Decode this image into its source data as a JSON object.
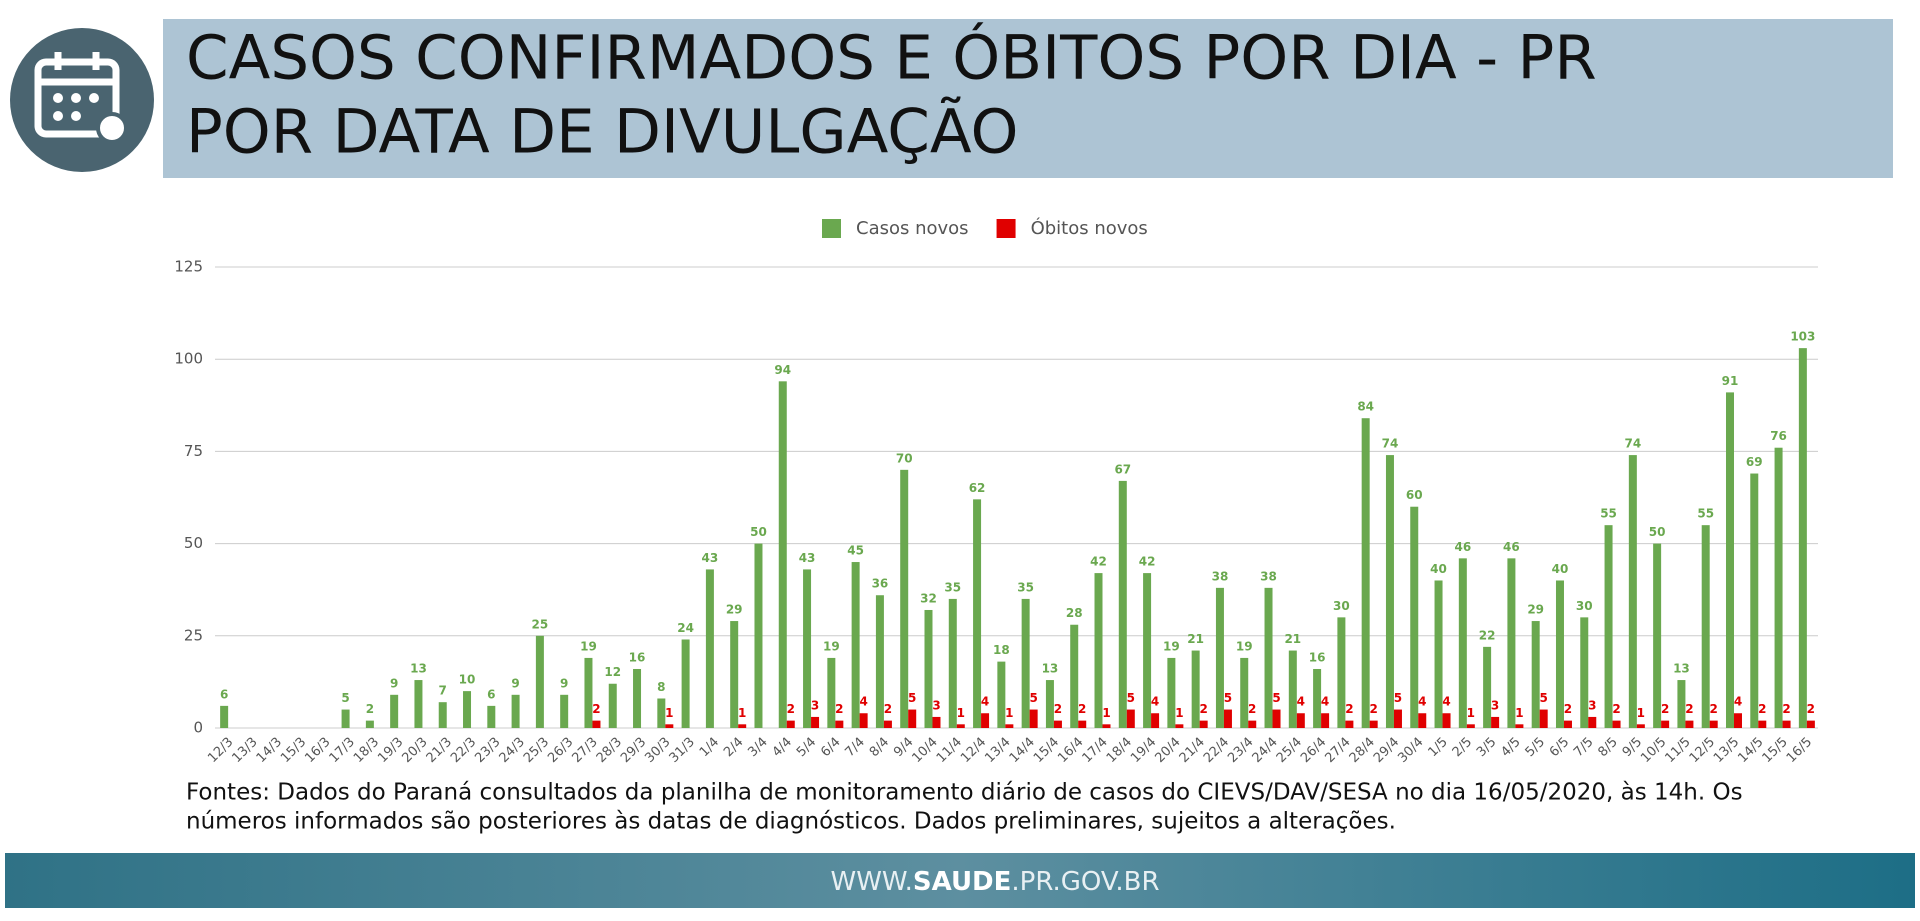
{
  "header": {
    "title": [
      "CASOS CONFIRMADOS E ÓBITOS POR DIA - PR",
      "POR DATA DE DIVULGAÇÃO"
    ]
  },
  "chart_data": {
    "type": "bar",
    "categories": [
      "12/3",
      "13/3",
      "14/3",
      "15/3",
      "16/3",
      "17/3",
      "18/3",
      "19/3",
      "20/3",
      "21/3",
      "22/3",
      "23/3",
      "24/3",
      "25/3",
      "26/3",
      "27/3",
      "28/3",
      "29/3",
      "30/3",
      "31/3",
      "1/4",
      "2/4",
      "3/4",
      "4/4",
      "5/4",
      "6/4",
      "7/4",
      "8/4",
      "9/4",
      "10/4",
      "11/4",
      "12/4",
      "13/4",
      "14/4",
      "15/4",
      "16/4",
      "17/4",
      "18/4",
      "19/4",
      "20/4",
      "21/4",
      "22/4",
      "23/4",
      "24/4",
      "25/4",
      "26/4",
      "27/4",
      "28/4",
      "29/4",
      "30/4",
      "1/5",
      "2/5",
      "3/5",
      "4/5",
      "5/5",
      "6/5",
      "7/5",
      "8/5",
      "9/5",
      "10/5",
      "11/5",
      "12/5",
      "13/5",
      "14/5",
      "15/5",
      "16/5"
    ],
    "series": [
      {
        "name": "Casos novos",
        "color": "#6aa84f",
        "values": [
          6,
          null,
          null,
          null,
          null,
          5,
          2,
          9,
          13,
          7,
          10,
          6,
          9,
          25,
          9,
          19,
          12,
          16,
          8,
          24,
          43,
          29,
          50,
          94,
          43,
          19,
          45,
          36,
          70,
          32,
          35,
          62,
          18,
          35,
          13,
          28,
          42,
          67,
          42,
          19,
          21,
          38,
          19,
          38,
          21,
          16,
          30,
          84,
          74,
          60,
          40,
          46,
          22,
          46,
          29,
          40,
          30,
          55,
          74,
          50,
          13,
          55,
          91,
          69,
          76,
          103
        ]
      },
      {
        "name": "Óbitos novos",
        "color": "#e00000",
        "values": [
          null,
          null,
          null,
          null,
          null,
          null,
          null,
          null,
          null,
          null,
          null,
          null,
          null,
          null,
          null,
          2,
          null,
          null,
          1,
          null,
          null,
          1,
          null,
          2,
          3,
          2,
          4,
          2,
          5,
          3,
          1,
          4,
          1,
          5,
          2,
          2,
          1,
          5,
          4,
          1,
          2,
          5,
          2,
          5,
          4,
          4,
          2,
          2,
          5,
          4,
          4,
          1,
          3,
          1,
          5,
          2,
          3,
          2,
          1,
          2,
          2,
          2,
          4,
          2,
          2,
          2
        ]
      }
    ],
    "ylim": [
      0,
      125
    ],
    "yticks": [
      0,
      25,
      50,
      75,
      100,
      125
    ],
    "grid": true,
    "legend": "top"
  },
  "sources": [
    "Fontes: Dados do Paraná consultados da planilha de monitoramento diário de casos do CIEVS/DAV/SESA no dia 16/05/2020, às 14h. Os",
    "números informados são posteriores às datas de diagnósticos. Dados preliminares, sujeitos a alterações."
  ],
  "footer": {
    "url_prefix": "WWW.",
    "url_bold": "SAUDE",
    "url_suffix": ".PR.GOV.BR"
  }
}
